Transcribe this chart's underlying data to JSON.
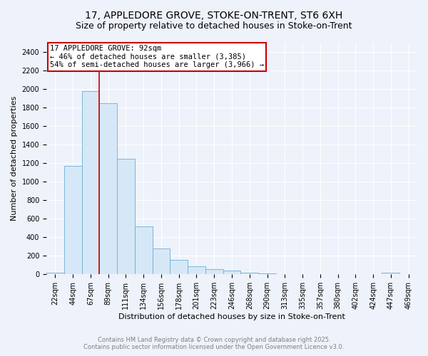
{
  "title": "17, APPLEDORE GROVE, STOKE-ON-TRENT, ST6 6XH",
  "subtitle": "Size of property relative to detached houses in Stoke-on-Trent",
  "xlabel": "Distribution of detached houses by size in Stoke-on-Trent",
  "ylabel": "Number of detached properties",
  "bar_color": "#d6e8f7",
  "bar_edge_color": "#6aaed6",
  "categories": [
    "22sqm",
    "44sqm",
    "67sqm",
    "89sqm",
    "111sqm",
    "134sqm",
    "156sqm",
    "178sqm",
    "201sqm",
    "223sqm",
    "246sqm",
    "268sqm",
    "290sqm",
    "313sqm",
    "335sqm",
    "357sqm",
    "380sqm",
    "402sqm",
    "424sqm",
    "447sqm",
    "469sqm"
  ],
  "values": [
    20,
    1170,
    1975,
    1850,
    1245,
    515,
    280,
    155,
    90,
    55,
    40,
    15,
    10,
    5,
    5,
    3,
    1,
    1,
    0,
    15,
    0
  ],
  "ylim": [
    0,
    2500
  ],
  "yticks": [
    0,
    200,
    400,
    600,
    800,
    1000,
    1200,
    1400,
    1600,
    1800,
    2000,
    2200,
    2400
  ],
  "property_line_x": 2.5,
  "property_label": "17 APPLEDORE GROVE: 92sqm",
  "annotation_line1": "← 46% of detached houses are smaller (3,385)",
  "annotation_line2": "54% of semi-detached houses are larger (3,966) →",
  "annotation_box_edge": "#cc0000",
  "vline_color": "#cc0000",
  "background_color": "#eef2fa",
  "grid_color": "#ffffff",
  "footnote1": "Contains HM Land Registry data © Crown copyright and database right 2025.",
  "footnote2": "Contains public sector information licensed under the Open Government Licence v3.0.",
  "title_fontsize": 10,
  "subtitle_fontsize": 9,
  "xlabel_fontsize": 8,
  "ylabel_fontsize": 8,
  "annot_fontsize": 7.5,
  "tick_fontsize": 7,
  "footnote_fontsize": 6
}
